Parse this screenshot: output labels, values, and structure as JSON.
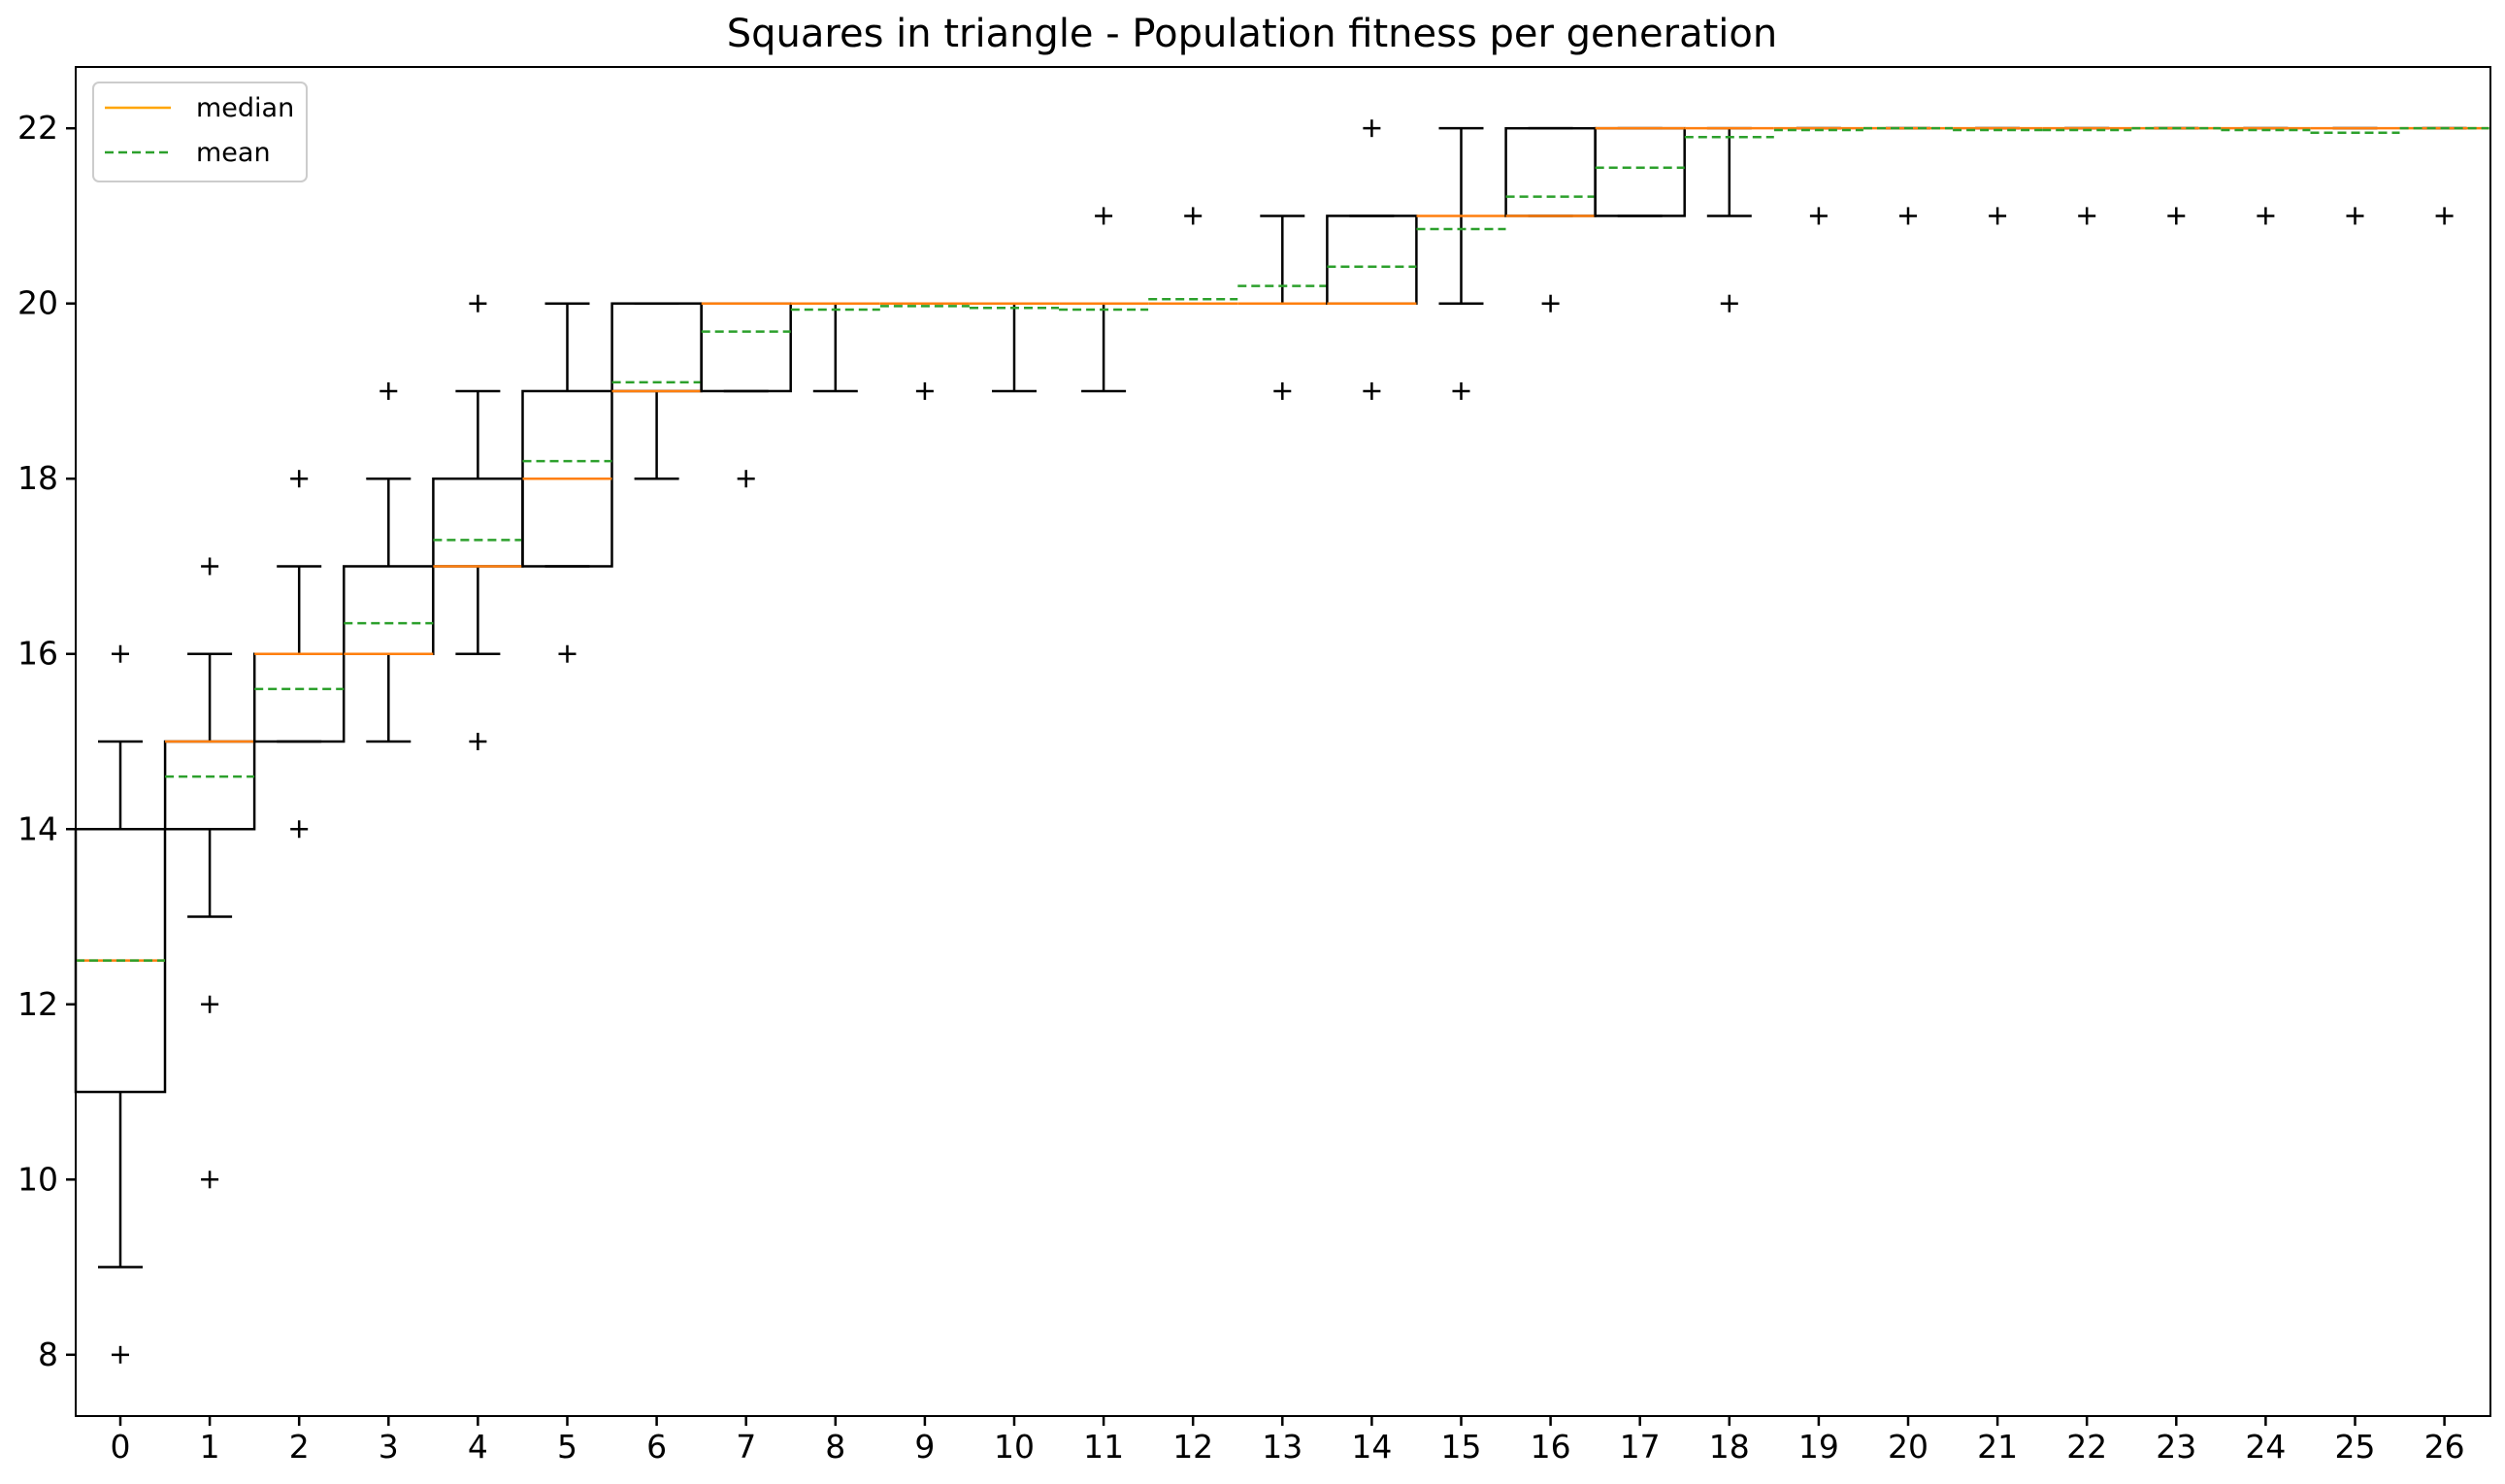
{
  "chart_data": {
    "type": "box",
    "title": "Squares in triangle - Population fitness per generation",
    "xlabel": "",
    "ylabel": "",
    "ylim": [
      7.3,
      22.7
    ],
    "yticks": [
      8,
      10,
      12,
      14,
      16,
      18,
      20,
      22
    ],
    "grid": false,
    "legend": {
      "placement": "top-left",
      "entries": [
        {
          "name": "median",
          "color": "#ffa500",
          "style": "solid"
        },
        {
          "name": "mean",
          "color": "#2ca02c",
          "style": "dashed"
        }
      ]
    },
    "colors": {
      "box": "#000000",
      "median": "#ff7f0e",
      "mean": "#2ca02c",
      "flier": "#000000"
    },
    "categories": [
      "0",
      "1",
      "2",
      "3",
      "4",
      "5",
      "6",
      "7",
      "8",
      "9",
      "10",
      "11",
      "12",
      "13",
      "14",
      "15",
      "16",
      "17",
      "18",
      "19",
      "20",
      "21",
      "22",
      "23",
      "24",
      "25",
      "26"
    ],
    "boxes": [
      {
        "q1": 11,
        "q3": 14,
        "median": 12.5,
        "mean": 12.5,
        "whisker_low": 9,
        "whisker_high": 15,
        "fliers": [
          8,
          16
        ]
      },
      {
        "q1": 14,
        "q3": 15,
        "median": 15,
        "mean": 14.6,
        "whisker_low": 13,
        "whisker_high": 16,
        "fliers": [
          10,
          12,
          17
        ]
      },
      {
        "q1": 15,
        "q3": 16,
        "median": 16,
        "mean": 15.6,
        "whisker_low": 15,
        "whisker_high": 17,
        "fliers": [
          14,
          18
        ]
      },
      {
        "q1": 16,
        "q3": 17,
        "median": 16,
        "mean": 16.35,
        "whisker_low": 15,
        "whisker_high": 18,
        "fliers": [
          19
        ]
      },
      {
        "q1": 17,
        "q3": 18,
        "median": 17,
        "mean": 17.3,
        "whisker_low": 16,
        "whisker_high": 19,
        "fliers": [
          15,
          20
        ]
      },
      {
        "q1": 17,
        "q3": 19,
        "median": 18,
        "mean": 18.2,
        "whisker_low": 17,
        "whisker_high": 20,
        "fliers": [
          16
        ]
      },
      {
        "q1": 19,
        "q3": 20,
        "median": 19,
        "mean": 19.1,
        "whisker_low": 18,
        "whisker_high": 20,
        "fliers": []
      },
      {
        "q1": 19,
        "q3": 20,
        "median": 20,
        "mean": 19.68,
        "whisker_low": 19,
        "whisker_high": 20,
        "fliers": [
          18
        ]
      },
      {
        "q1": 20,
        "q3": 20,
        "median": 20,
        "mean": 19.93,
        "whisker_low": 19,
        "whisker_high": 20,
        "fliers": []
      },
      {
        "q1": 20,
        "q3": 20,
        "median": 20,
        "mean": 19.97,
        "whisker_low": 20,
        "whisker_high": 20,
        "fliers": [
          19
        ]
      },
      {
        "q1": 20,
        "q3": 20,
        "median": 20,
        "mean": 19.95,
        "whisker_low": 19,
        "whisker_high": 20,
        "fliers": []
      },
      {
        "q1": 20,
        "q3": 20,
        "median": 20,
        "mean": 19.93,
        "whisker_low": 19,
        "whisker_high": 20,
        "fliers": [
          21
        ]
      },
      {
        "q1": 20,
        "q3": 20,
        "median": 20,
        "mean": 20.05,
        "whisker_low": 20,
        "whisker_high": 20,
        "fliers": [
          21
        ]
      },
      {
        "q1": 20,
        "q3": 20,
        "median": 20,
        "mean": 20.2,
        "whisker_low": 20,
        "whisker_high": 21,
        "fliers": [
          19
        ]
      },
      {
        "q1": 20,
        "q3": 21,
        "median": 20,
        "mean": 20.42,
        "whisker_low": 20,
        "whisker_high": 21,
        "fliers": [
          19,
          22
        ]
      },
      {
        "q1": 21,
        "q3": 21,
        "median": 21,
        "mean": 20.85,
        "whisker_low": 20,
        "whisker_high": 22,
        "fliers": [
          19
        ]
      },
      {
        "q1": 21,
        "q3": 22,
        "median": 21,
        "mean": 21.22,
        "whisker_low": 21,
        "whisker_high": 22,
        "fliers": [
          20
        ]
      },
      {
        "q1": 21,
        "q3": 22,
        "median": 22,
        "mean": 21.55,
        "whisker_low": 21,
        "whisker_high": 22,
        "fliers": []
      },
      {
        "q1": 22,
        "q3": 22,
        "median": 22,
        "mean": 21.9,
        "whisker_low": 21,
        "whisker_high": 22,
        "fliers": [
          20
        ]
      },
      {
        "q1": 22,
        "q3": 22,
        "median": 22,
        "mean": 21.98,
        "whisker_low": 22,
        "whisker_high": 22,
        "fliers": [
          21
        ]
      },
      {
        "q1": 22,
        "q3": 22,
        "median": 22,
        "mean": 22.0,
        "whisker_low": 22,
        "whisker_high": 22,
        "fliers": [
          21
        ]
      },
      {
        "q1": 22,
        "q3": 22,
        "median": 22,
        "mean": 21.98,
        "whisker_low": 22,
        "whisker_high": 22,
        "fliers": [
          21
        ]
      },
      {
        "q1": 22,
        "q3": 22,
        "median": 22,
        "mean": 21.98,
        "whisker_low": 22,
        "whisker_high": 22,
        "fliers": [
          21
        ]
      },
      {
        "q1": 22,
        "q3": 22,
        "median": 22,
        "mean": 22.0,
        "whisker_low": 22,
        "whisker_high": 22,
        "fliers": [
          21
        ]
      },
      {
        "q1": 22,
        "q3": 22,
        "median": 22,
        "mean": 21.98,
        "whisker_low": 22,
        "whisker_high": 22,
        "fliers": [
          21
        ]
      },
      {
        "q1": 22,
        "q3": 22,
        "median": 22,
        "mean": 21.95,
        "whisker_low": 22,
        "whisker_high": 22,
        "fliers": [
          21
        ]
      },
      {
        "q1": 22,
        "q3": 22,
        "median": 22,
        "mean": 22.0,
        "whisker_low": 22,
        "whisker_high": 22,
        "fliers": [
          21
        ]
      }
    ]
  }
}
